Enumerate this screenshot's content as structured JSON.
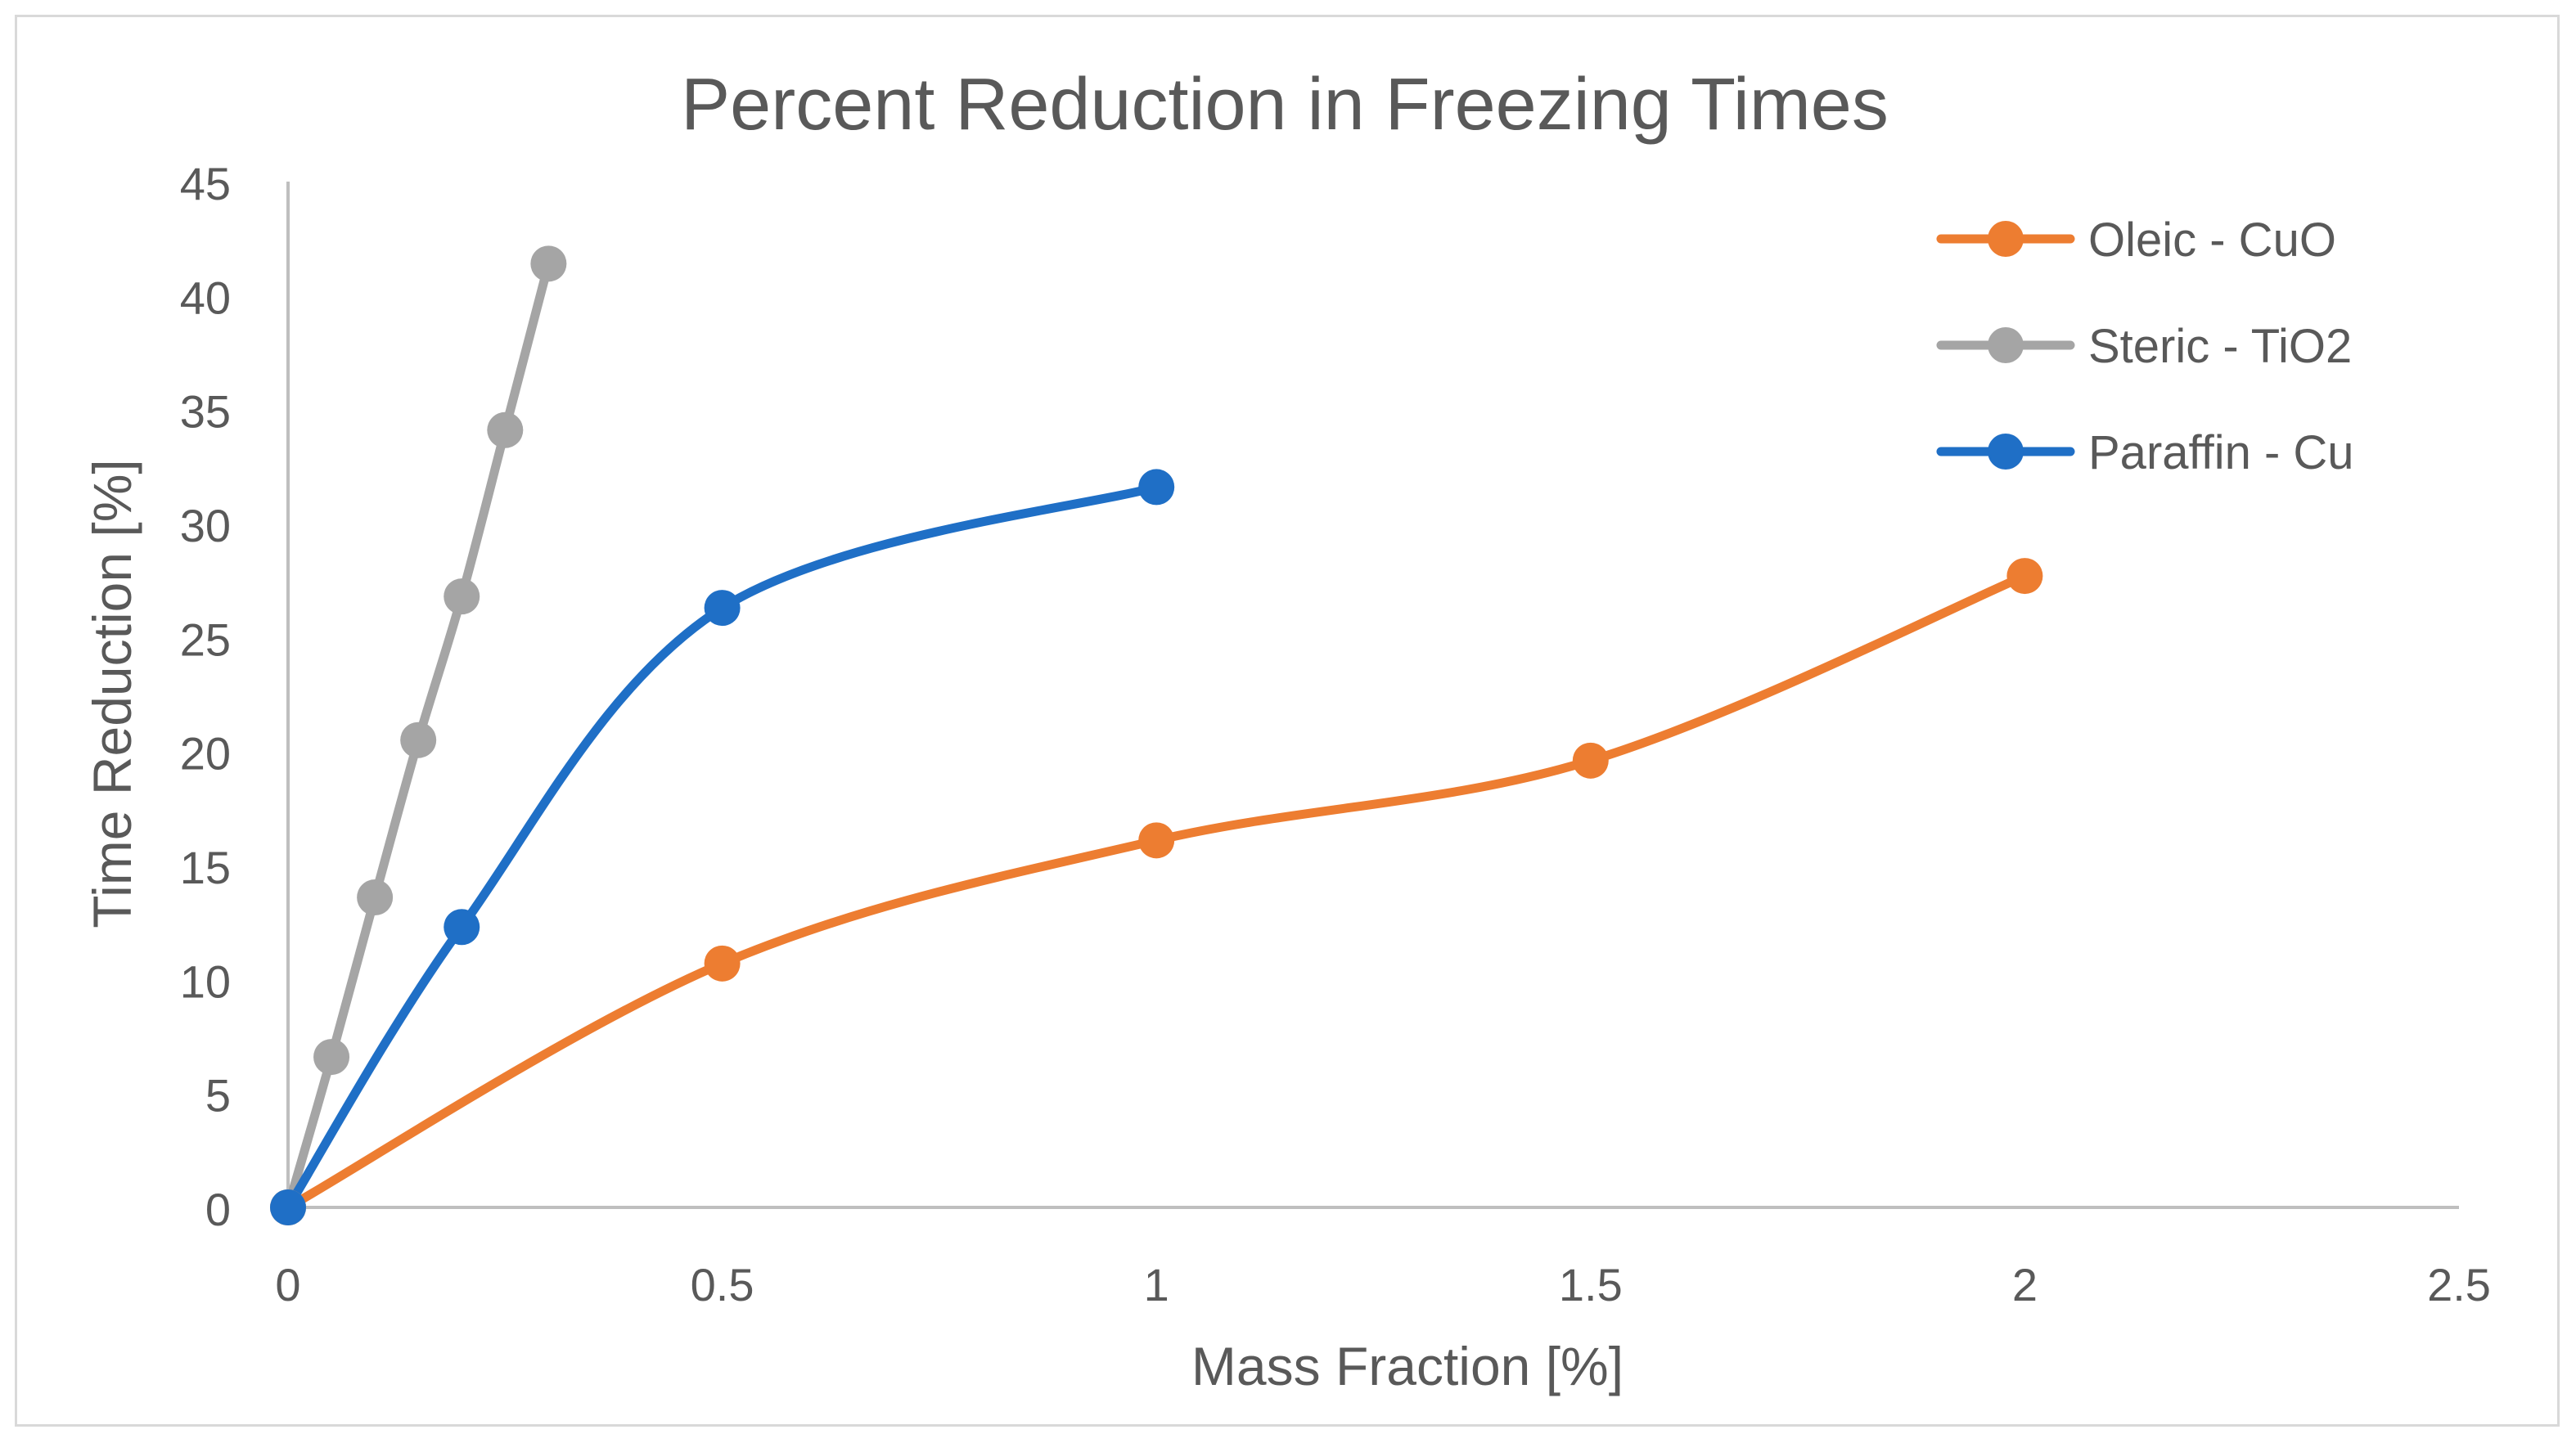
{
  "chart_data": {
    "type": "line",
    "title": "Percent Reduction in Freezing Times",
    "xlabel": "Mass Fraction [%]",
    "ylabel": "Time Reduction [%]",
    "xlim": [
      0,
      2.5
    ],
    "ylim": [
      0,
      45
    ],
    "x_ticks": [
      "0",
      "0.5",
      "1",
      "1.5",
      "2",
      "2.5"
    ],
    "y_ticks": [
      "0",
      "5",
      "10",
      "15",
      "20",
      "25",
      "30",
      "35",
      "40",
      "45"
    ],
    "grid": false,
    "smoothed": true,
    "legend_position": "top-right",
    "series": [
      {
        "name": "Oleic - CuO",
        "color": "#ED7D31",
        "points": [
          [
            0,
            0
          ],
          [
            0.5,
            10.7
          ],
          [
            1,
            16.1
          ],
          [
            1.5,
            19.6
          ],
          [
            2,
            27.7
          ]
        ]
      },
      {
        "name": "Steric - TiO2",
        "color": "#A5A5A5",
        "points": [
          [
            0,
            0
          ],
          [
            0.05,
            6.6
          ],
          [
            0.1,
            13.6
          ],
          [
            0.15,
            20.5
          ],
          [
            0.2,
            26.8
          ],
          [
            0.25,
            34.1
          ],
          [
            0.3,
            41.4
          ]
        ]
      },
      {
        "name": "Paraffin - Cu",
        "color": "#1F6FC6",
        "points": [
          [
            0,
            0
          ],
          [
            0.2,
            12.3
          ],
          [
            0.5,
            26.3
          ],
          [
            1,
            31.6
          ]
        ]
      }
    ]
  }
}
